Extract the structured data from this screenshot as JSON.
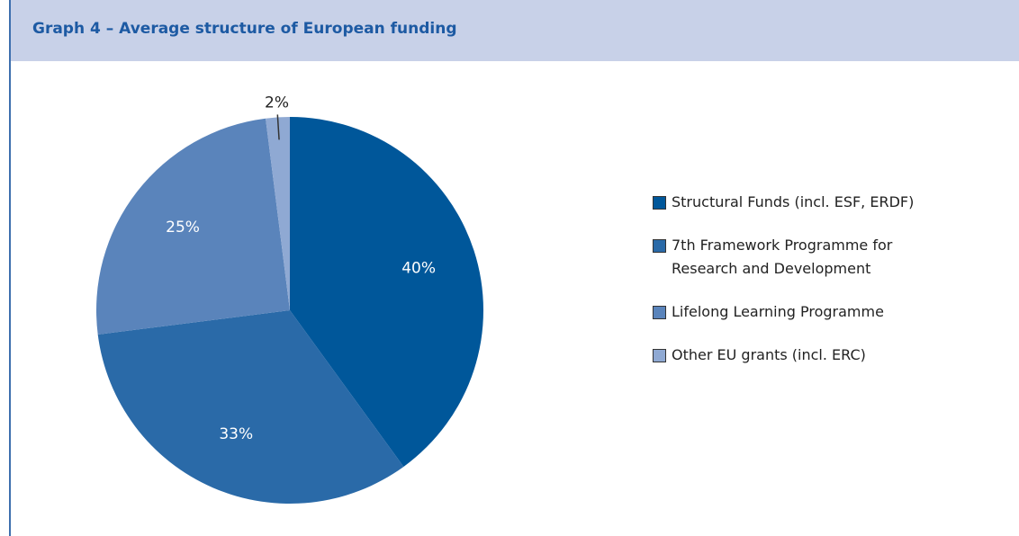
{
  "chart_data": {
    "type": "pie",
    "title": "Graph 4 – Average structure of European funding",
    "categories": [
      "Structural Funds (incl. ESF, ERDF)",
      "7th Framework Programme for Research and Development",
      "Lifelong Learning Programme",
      "Other EU grants (incl. ERC)"
    ],
    "values": [
      40,
      33,
      25,
      2
    ],
    "value_labels": [
      "40%",
      "33%",
      "25%",
      "2%"
    ],
    "colors": [
      "#00579a",
      "#2a6aa8",
      "#5a84bb",
      "#8fa9d3"
    ]
  }
}
